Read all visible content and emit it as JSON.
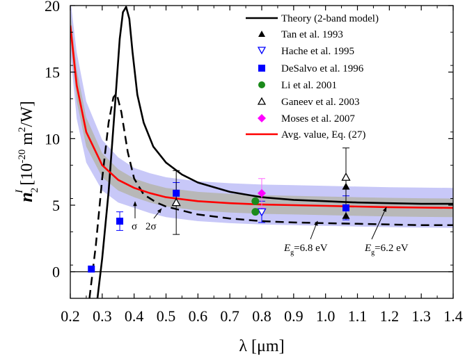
{
  "chart_data": {
    "type": "line",
    "xlabel": "λ [μm]",
    "ylabel_main": "n",
    "ylabel_sub": "2",
    "ylabel_sup": "I",
    "ylabel_rest": "[10",
    "ylabel_exp": "-20",
    "ylabel_unit": "m",
    "ylabel_unit_exp": "2",
    "ylabel_end": "/W]",
    "xlim": [
      0.2,
      1.4
    ],
    "ylim": [
      -2,
      20
    ],
    "xticks": [
      "0.2",
      "0.3",
      "0.4",
      "0.5",
      "0.6",
      "0.7",
      "0.8",
      "0.9",
      "1.0",
      "1.1",
      "1.2",
      "1.3",
      "1.4"
    ],
    "yticks": [
      "0",
      "5",
      "10",
      "15",
      "20"
    ],
    "colors": {
      "theory": "#000000",
      "avg": "#ff0000",
      "band_1sigma": "#b8b8b8",
      "band_2sigma": "#c8c8f8",
      "desalvo": "#0000ff",
      "hache": "#0000ff",
      "li": "#1a8a1a",
      "moses": "#ff00ff",
      "moses_bar": "#ff66ff"
    },
    "series": [
      {
        "name": "Theory (2-band model)",
        "style": "solid",
        "points": [
          [
            0.27,
            -2.2
          ],
          [
            0.285,
            -2.0
          ],
          [
            0.3,
            1.0
          ],
          [
            0.32,
            6.0
          ],
          [
            0.34,
            12.5
          ],
          [
            0.355,
            17.5
          ],
          [
            0.365,
            19.5
          ],
          [
            0.375,
            19.9
          ],
          [
            0.385,
            19.0
          ],
          [
            0.395,
            16.5
          ],
          [
            0.41,
            13.3
          ],
          [
            0.43,
            11.2
          ],
          [
            0.46,
            9.4
          ],
          [
            0.5,
            8.2
          ],
          [
            0.55,
            7.3
          ],
          [
            0.6,
            6.7
          ],
          [
            0.7,
            6.0
          ],
          [
            0.8,
            5.6
          ],
          [
            0.9,
            5.4
          ],
          [
            1.0,
            5.3
          ],
          [
            1.1,
            5.2
          ],
          [
            1.2,
            5.15
          ],
          [
            1.3,
            5.1
          ],
          [
            1.4,
            5.1
          ]
        ]
      },
      {
        "name": "",
        "style": "dashed",
        "points": [
          [
            0.26,
            -2.0
          ],
          [
            0.28,
            2.0
          ],
          [
            0.3,
            7.0
          ],
          [
            0.32,
            11.2
          ],
          [
            0.335,
            13.1
          ],
          [
            0.345,
            13.4
          ],
          [
            0.36,
            12.0
          ],
          [
            0.38,
            9.0
          ],
          [
            0.4,
            7.0
          ],
          [
            0.43,
            5.8
          ],
          [
            0.47,
            5.2
          ],
          [
            0.5,
            4.9
          ],
          [
            0.55,
            4.6
          ],
          [
            0.6,
            4.3
          ],
          [
            0.7,
            4.0
          ],
          [
            0.8,
            3.8
          ],
          [
            0.9,
            3.7
          ],
          [
            1.0,
            3.65
          ],
          [
            1.1,
            3.6
          ],
          [
            1.2,
            3.55
          ],
          [
            1.3,
            3.5
          ],
          [
            1.4,
            3.5
          ]
        ]
      },
      {
        "name": "Avg. value, Eq. (27)",
        "style": "solid",
        "points": [
          [
            0.2,
            18.5
          ],
          [
            0.22,
            14.0
          ],
          [
            0.25,
            10.5
          ],
          [
            0.3,
            8.0
          ],
          [
            0.35,
            6.9
          ],
          [
            0.4,
            6.3
          ],
          [
            0.45,
            5.9
          ],
          [
            0.5,
            5.6
          ],
          [
            0.6,
            5.3
          ],
          [
            0.7,
            5.15
          ],
          [
            0.8,
            5.05
          ],
          [
            0.9,
            5.0
          ],
          [
            1.0,
            4.95
          ],
          [
            1.1,
            4.9
          ],
          [
            1.2,
            4.85
          ],
          [
            1.3,
            4.82
          ],
          [
            1.4,
            4.8
          ]
        ]
      }
    ],
    "bands": {
      "sigma1": [
        [
          0.2,
          19.5,
          17.5
        ],
        [
          0.22,
          15.2,
          12.8
        ],
        [
          0.25,
          11.6,
          9.4
        ],
        [
          0.3,
          8.9,
          7.1
        ],
        [
          0.35,
          7.7,
          6.1
        ],
        [
          0.4,
          7.0,
          5.6
        ],
        [
          0.45,
          6.6,
          5.2
        ],
        [
          0.5,
          6.3,
          4.9
        ],
        [
          0.6,
          6.0,
          4.6
        ],
        [
          0.7,
          5.85,
          4.45
        ],
        [
          0.8,
          5.75,
          4.35
        ],
        [
          0.9,
          5.7,
          4.3
        ],
        [
          1.0,
          5.65,
          4.25
        ],
        [
          1.1,
          5.6,
          4.2
        ],
        [
          1.2,
          5.55,
          4.15
        ],
        [
          1.3,
          5.52,
          4.12
        ],
        [
          1.4,
          5.5,
          4.1
        ]
      ],
      "sigma2": [
        [
          0.2,
          20.5,
          16.5
        ],
        [
          0.22,
          16.5,
          11.5
        ],
        [
          0.25,
          12.8,
          8.2
        ],
        [
          0.3,
          9.9,
          6.1
        ],
        [
          0.35,
          8.6,
          5.2
        ],
        [
          0.4,
          7.8,
          4.8
        ],
        [
          0.45,
          7.4,
          4.4
        ],
        [
          0.5,
          7.1,
          4.1
        ],
        [
          0.6,
          6.8,
          3.8
        ],
        [
          0.7,
          6.65,
          3.65
        ],
        [
          0.8,
          6.55,
          3.55
        ],
        [
          0.9,
          6.5,
          3.5
        ],
        [
          1.0,
          6.45,
          3.45
        ],
        [
          1.1,
          6.4,
          3.4
        ],
        [
          1.2,
          6.35,
          3.35
        ],
        [
          1.3,
          6.32,
          3.32
        ],
        [
          1.4,
          6.3,
          3.3
        ]
      ]
    },
    "datasets": [
      {
        "name": "Tan et al. 1993",
        "marker": "triangle-filled",
        "points": [
          [
            1.064,
            6.4,
            0
          ],
          [
            1.064,
            4.2,
            0
          ]
        ]
      },
      {
        "name": "Hache et al. 1995",
        "marker": "triangle-down-open",
        "points": [
          [
            0.8,
            4.5,
            0.8
          ]
        ]
      },
      {
        "name": "DeSalvo et al. 1996",
        "marker": "square-filled",
        "points": [
          [
            0.266,
            0.2,
            0
          ],
          [
            0.355,
            3.8,
            0.7
          ],
          [
            0.532,
            5.9,
            0.8
          ],
          [
            1.064,
            4.8,
            0.9
          ]
        ]
      },
      {
        "name": "Li et al. 2001",
        "marker": "circle-filled",
        "points": [
          [
            0.78,
            5.3,
            0
          ],
          [
            0.78,
            4.5,
            0
          ]
        ]
      },
      {
        "name": "Ganeev et al. 2003",
        "marker": "triangle-open",
        "points": [
          [
            0.532,
            5.2,
            2.4
          ],
          [
            1.064,
            7.1,
            2.2
          ]
        ]
      },
      {
        "name": "Moses et al. 2007",
        "marker": "diamond-filled",
        "points": [
          [
            0.8,
            5.9,
            1.1
          ]
        ]
      }
    ],
    "legend": {
      "placement": "top-right",
      "entries": [
        "Theory (2-band model)",
        "Tan et al. 1993",
        "Hache et al. 1995",
        "DeSalvo et al. 1996",
        "Li et al. 2001",
        "Ganeev et al. 2003",
        "Moses et al. 2007",
        "Avg. value, Eq. (27)"
      ]
    },
    "annotations": {
      "sigma": "σ",
      "two_sigma": "2σ",
      "eg1_main": "E",
      "eg1_sub": "g",
      "eg1_value": "=6.8 eV",
      "eg2_main": "E",
      "eg2_sub": "g",
      "eg2_value": "=6.2 eV"
    }
  }
}
